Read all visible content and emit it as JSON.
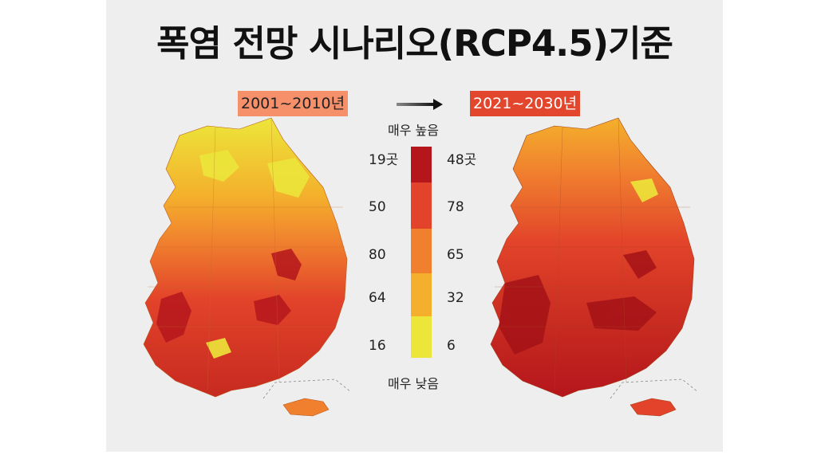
{
  "title": "폭염 전망 시나리오(RCP4.5)기준",
  "periods": {
    "before": {
      "label": "2001~2010년",
      "color": "#f5906a"
    },
    "after": {
      "label": "2021~2030년",
      "color": "#e2472e"
    }
  },
  "legend": {
    "top_label": "매우 높음",
    "bottom_label": "매우 낮음",
    "levels": [
      {
        "color": "#b5161c",
        "left": "19곳",
        "right": "48곳"
      },
      {
        "color": "#e2432a",
        "left": "50",
        "right": "78"
      },
      {
        "color": "#f07f2e",
        "left": "80",
        "right": "65"
      },
      {
        "color": "#f4b02c",
        "left": "64",
        "right": "32"
      },
      {
        "color": "#ece63a",
        "left": "16",
        "right": "6"
      }
    ]
  },
  "maps": [
    {
      "name": "korea-heatwave-2001-2010",
      "period": "2001~2010년"
    },
    {
      "name": "korea-heatwave-2021-2030",
      "period": "2021~2030년"
    }
  ]
}
